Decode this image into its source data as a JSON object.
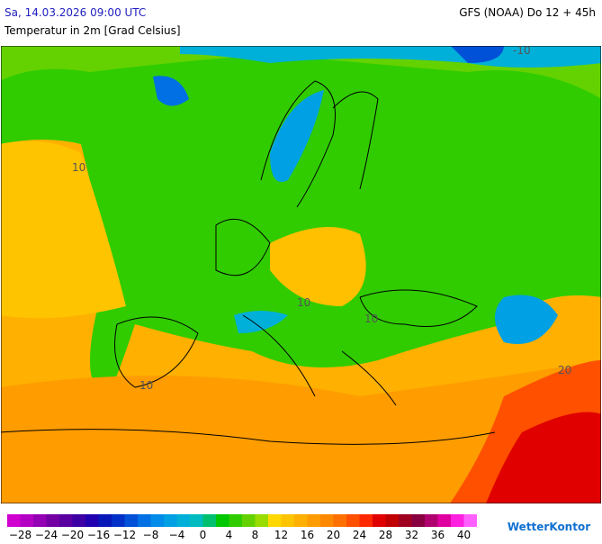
{
  "header": {
    "valid_time": "Sa, 14.03.2026 09:00 UTC",
    "model_run": "GFS (NOAA) Do 12 + 45h",
    "title": "Temperatur in 2m [Grad Celsius]"
  },
  "map": {
    "contour_labels": [
      "10",
      "10",
      "10",
      "10",
      "-10",
      "20"
    ]
  },
  "legend": {
    "colors": [
      "#d000d0",
      "#b400c4",
      "#9400b4",
      "#7400a4",
      "#5800a0",
      "#3c00a4",
      "#2000b0",
      "#0818b8",
      "#0030c8",
      "#0050d8",
      "#0070e4",
      "#008ce8",
      "#00a0e4",
      "#00b0d8",
      "#00bcc0",
      "#00c070",
      "#00c800",
      "#30cc00",
      "#64d200",
      "#98dc00",
      "#ffd800",
      "#ffc400",
      "#ffb000",
      "#ff9c00",
      "#ff8800",
      "#ff7000",
      "#ff5000",
      "#ff2800",
      "#e00000",
      "#c00000",
      "#a00020",
      "#880040",
      "#b00070",
      "#e000a0",
      "#ff20e0",
      "#ff60ff"
    ],
    "ticks": [
      {
        "value": -28,
        "label": "−28"
      },
      {
        "value": -24,
        "label": "−24"
      },
      {
        "value": -20,
        "label": "−20"
      },
      {
        "value": -16,
        "label": "−16"
      },
      {
        "value": -12,
        "label": "−12"
      },
      {
        "value": -8,
        "label": "−8"
      },
      {
        "value": -4,
        "label": "−4"
      },
      0,
      4,
      8,
      12,
      16,
      20,
      24,
      28,
      32,
      36,
      40
    ]
  },
  "logo": "WetterKontor"
}
